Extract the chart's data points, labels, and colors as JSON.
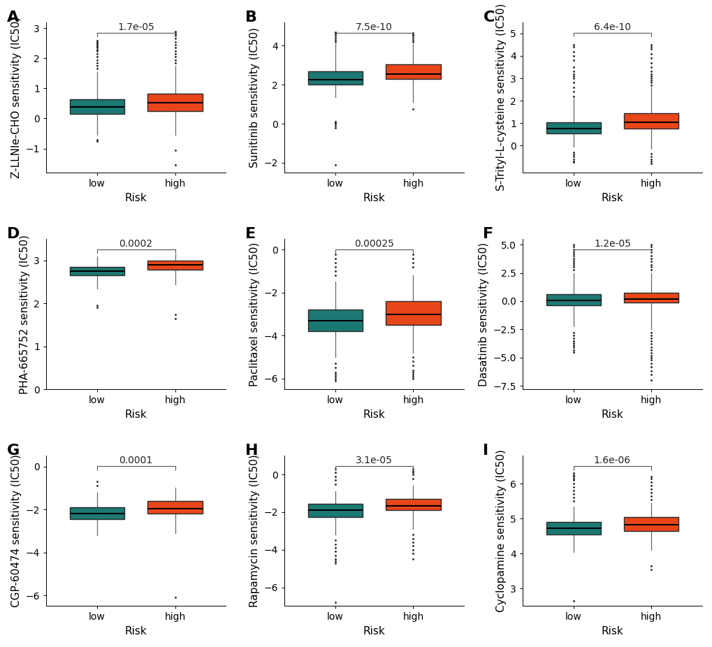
{
  "panels": [
    {
      "label": "A",
      "ylabel": "Z-LLNle-CHO sensitivity (IC50)",
      "pvalue": "1.7e-05",
      "low": {
        "q1": 0.15,
        "median": 0.38,
        "q3": 0.65,
        "whisker_low": -0.55,
        "whisker_high": 1.55,
        "outliers_low": [
          -0.7,
          -0.75
        ],
        "outliers_high": [
          1.65,
          1.75,
          1.85,
          1.95,
          2.05,
          2.15,
          2.25,
          2.3,
          2.35,
          2.4,
          2.45,
          2.5,
          2.55,
          2.6
        ]
      },
      "high": {
        "q1": 0.25,
        "median": 0.52,
        "q3": 0.82,
        "whisker_low": -0.55,
        "whisker_high": 1.75,
        "outliers_low": [
          -1.05,
          -1.55
        ],
        "outliers_high": [
          1.85,
          1.95,
          2.05,
          2.15,
          2.25,
          2.35,
          2.45,
          2.55,
          2.65,
          2.75,
          2.8,
          2.85,
          2.9
        ]
      },
      "ylim": [
        -1.8,
        3.2
      ],
      "yticks": [
        -1,
        0,
        1,
        2,
        3
      ]
    },
    {
      "label": "B",
      "ylabel": "Sunitinib sensitivity (IC50)",
      "pvalue": "7.5e-10",
      "low": {
        "q1": 2.0,
        "median": 2.25,
        "q3": 2.7,
        "whisker_low": 1.35,
        "whisker_high": 4.1,
        "outliers_low": [
          -0.1,
          -0.2,
          0.0,
          0.05,
          0.1,
          -2.1
        ],
        "outliers_high": [
          4.2,
          4.3,
          4.4,
          4.5,
          4.6,
          4.65,
          4.7
        ]
      },
      "high": {
        "q1": 2.3,
        "median": 2.55,
        "q3": 3.05,
        "whisker_low": 1.1,
        "whisker_high": 4.1,
        "outliers_low": [
          0.75
        ],
        "outliers_high": [
          4.2,
          4.3,
          4.4,
          4.5,
          4.55,
          4.6,
          4.65
        ]
      },
      "ylim": [
        -2.5,
        5.2
      ],
      "yticks": [
        -2,
        0,
        2,
        4
      ]
    },
    {
      "label": "C",
      "ylabel": "S-Trityl-L-cysteine sensitivity (IC50)",
      "pvalue": "6.4e-10",
      "low": {
        "q1": 0.55,
        "median": 0.75,
        "q3": 1.05,
        "whisker_low": -0.05,
        "whisker_high": 2.1,
        "outliers_low": [
          -0.3,
          -0.4,
          -0.5,
          -0.6,
          -0.7,
          -0.75
        ],
        "outliers_high": [
          2.2,
          2.4,
          2.6,
          2.8,
          3.0,
          3.1,
          3.2,
          3.3,
          3.5,
          3.8,
          4.0,
          4.2,
          4.4,
          4.5
        ]
      },
      "high": {
        "q1": 0.75,
        "median": 1.05,
        "q3": 1.45,
        "whisker_low": -0.15,
        "whisker_high": 2.6,
        "outliers_low": [
          -0.35,
          -0.5,
          -0.6,
          -0.7,
          -0.8
        ],
        "outliers_high": [
          2.7,
          2.8,
          2.9,
          3.0,
          3.1,
          3.2,
          3.3,
          3.5,
          3.7,
          3.9,
          4.1,
          4.3,
          4.4,
          4.5
        ]
      },
      "ylim": [
        -1.2,
        5.5
      ],
      "yticks": [
        0,
        1,
        2,
        3,
        4,
        5
      ]
    },
    {
      "label": "D",
      "ylabel": "PHA-665752 sensitivity (IC50)",
      "pvalue": "0.0002",
      "low": {
        "q1": 2.65,
        "median": 2.75,
        "q3": 2.85,
        "whisker_low": 2.35,
        "whisker_high": 3.1,
        "outliers_low": [
          1.95,
          1.9
        ],
        "outliers_high": []
      },
      "high": {
        "q1": 2.78,
        "median": 2.9,
        "q3": 3.0,
        "whisker_low": 2.45,
        "whisker_high": 3.15,
        "outliers_low": [
          1.75,
          1.65
        ],
        "outliers_high": []
      },
      "ylim": [
        0.0,
        3.5
      ],
      "yticks": [
        0,
        1,
        2,
        3
      ]
    },
    {
      "label": "E",
      "ylabel": "Paclitaxel sensitivity (IC50)",
      "pvalue": "0.00025",
      "low": {
        "q1": -3.8,
        "median": -3.3,
        "q3": -2.8,
        "whisker_low": -5.0,
        "whisker_high": -1.5,
        "outliers_low": [
          -5.3,
          -5.5,
          -5.7,
          -5.8,
          -5.9,
          -6.0,
          -6.1
        ],
        "outliers_high": [
          -1.2,
          -1.0,
          -0.8,
          -0.6,
          -0.4,
          -0.2
        ]
      },
      "high": {
        "q1": -3.5,
        "median": -3.0,
        "q3": -2.4,
        "whisker_low": -4.8,
        "whisker_high": -1.2,
        "outliers_low": [
          -5.0,
          -5.2,
          -5.4,
          -5.6,
          -5.7,
          -5.8,
          -5.9,
          -6.0
        ],
        "outliers_high": [
          -0.8,
          -0.6,
          -0.4,
          -0.2
        ]
      },
      "ylim": [
        -6.5,
        0.5
      ],
      "yticks": [
        -6,
        -4,
        -2,
        0
      ]
    },
    {
      "label": "F",
      "ylabel": "Dasatinib sensitivity (IC50)",
      "pvalue": "1.2e-05",
      "low": {
        "q1": -0.35,
        "median": 0.05,
        "q3": 0.6,
        "whisker_low": -2.2,
        "whisker_high": 2.5,
        "outliers_low": [
          -2.8,
          -3.0,
          -3.3,
          -3.5,
          -3.7,
          -3.9,
          -4.1,
          -4.3,
          -4.5
        ],
        "outliers_high": [
          2.8,
          3.0,
          3.2,
          3.4,
          3.6,
          3.8,
          4.0,
          4.2,
          4.4,
          4.6,
          4.8,
          5.0
        ]
      },
      "high": {
        "q1": -0.1,
        "median": 0.2,
        "q3": 0.75,
        "whisker_low": -2.5,
        "whisker_high": 2.5,
        "outliers_low": [
          -2.8,
          -3.0,
          -3.3,
          -3.5,
          -3.8,
          -4.1,
          -4.3,
          -4.6,
          -4.8,
          -5.0,
          -5.2,
          -5.5,
          -5.8,
          -6.2,
          -6.5,
          -7.0
        ],
        "outliers_high": [
          2.8,
          3.0,
          3.2,
          3.5,
          3.8,
          4.0,
          4.3,
          4.6,
          4.8,
          5.0
        ]
      },
      "ylim": [
        -7.8,
        5.5
      ],
      "yticks": [
        -7.5,
        -5.0,
        -2.5,
        0.0,
        2.5,
        5.0
      ]
    },
    {
      "label": "G",
      "ylabel": "CGP-60474 sensitivity (IC50)",
      "pvalue": "0.0001",
      "low": {
        "q1": -2.45,
        "median": -2.2,
        "q3": -1.9,
        "whisker_low": -3.2,
        "whisker_high": -1.2,
        "outliers_low": [],
        "outliers_high": [
          -0.9,
          -0.7
        ]
      },
      "high": {
        "q1": -2.2,
        "median": -1.95,
        "q3": -1.6,
        "whisker_low": -3.1,
        "whisker_high": -1.0,
        "outliers_low": [
          -6.1
        ],
        "outliers_high": []
      },
      "ylim": [
        -6.5,
        0.5
      ],
      "yticks": [
        -6,
        -4,
        -2,
        0
      ]
    },
    {
      "label": "H",
      "ylabel": "Rapamycin sensitivity (IC50)",
      "pvalue": "3.1e-05",
      "low": {
        "q1": -2.25,
        "median": -1.9,
        "q3": -1.55,
        "whisker_low": -3.2,
        "whisker_high": -0.9,
        "outliers_low": [
          -3.5,
          -3.7,
          -3.9,
          -4.1,
          -4.3,
          -4.5,
          -4.6,
          -4.7,
          -6.8
        ],
        "outliers_high": [
          -0.5,
          -0.3,
          -0.1,
          0.1,
          0.3
        ]
      },
      "high": {
        "q1": -1.9,
        "median": -1.65,
        "q3": -1.3,
        "whisker_low": -2.9,
        "whisker_high": -0.6,
        "outliers_low": [
          -3.2,
          -3.4,
          -3.6,
          -3.8,
          -4.0,
          -4.2,
          -4.5
        ],
        "outliers_high": [
          -0.2,
          0.0,
          0.1,
          0.2,
          0.3
        ]
      },
      "ylim": [
        -7.0,
        1.0
      ],
      "yticks": [
        -6,
        -4,
        -2,
        0
      ]
    },
    {
      "label": "I",
      "ylabel": "Cyclopamine sensitivity (IC50)",
      "pvalue": "1.6e-06",
      "low": {
        "q1": 4.55,
        "median": 4.72,
        "q3": 4.9,
        "whisker_low": 4.05,
        "whisker_high": 5.35,
        "outliers_low": [
          2.65
        ],
        "outliers_high": [
          5.5,
          5.6,
          5.7,
          5.8,
          5.9,
          6.0,
          6.1,
          6.15,
          6.2,
          6.25,
          6.3
        ]
      },
      "high": {
        "q1": 4.65,
        "median": 4.82,
        "q3": 5.05,
        "whisker_low": 4.1,
        "whisker_high": 5.45,
        "outliers_low": [
          3.65,
          3.55
        ],
        "outliers_high": [
          5.55,
          5.65,
          5.75,
          5.85,
          5.95,
          6.05,
          6.15,
          6.2
        ]
      },
      "ylim": [
        2.5,
        6.8
      ],
      "yticks": [
        3,
        4,
        5,
        6
      ]
    }
  ],
  "color_low": "#1c7872",
  "color_high": "#e8461a",
  "color_median": "#000000",
  "color_whisker": "#666666",
  "color_outlier": "#1a1a1a",
  "xlabel": "Risk",
  "bg_color": "#ffffff",
  "panel_bg": "#ffffff",
  "label_fontsize": 16,
  "tick_fontsize": 10,
  "axis_label_fontsize": 11,
  "pvalue_fontsize": 10,
  "box_width": 0.7
}
